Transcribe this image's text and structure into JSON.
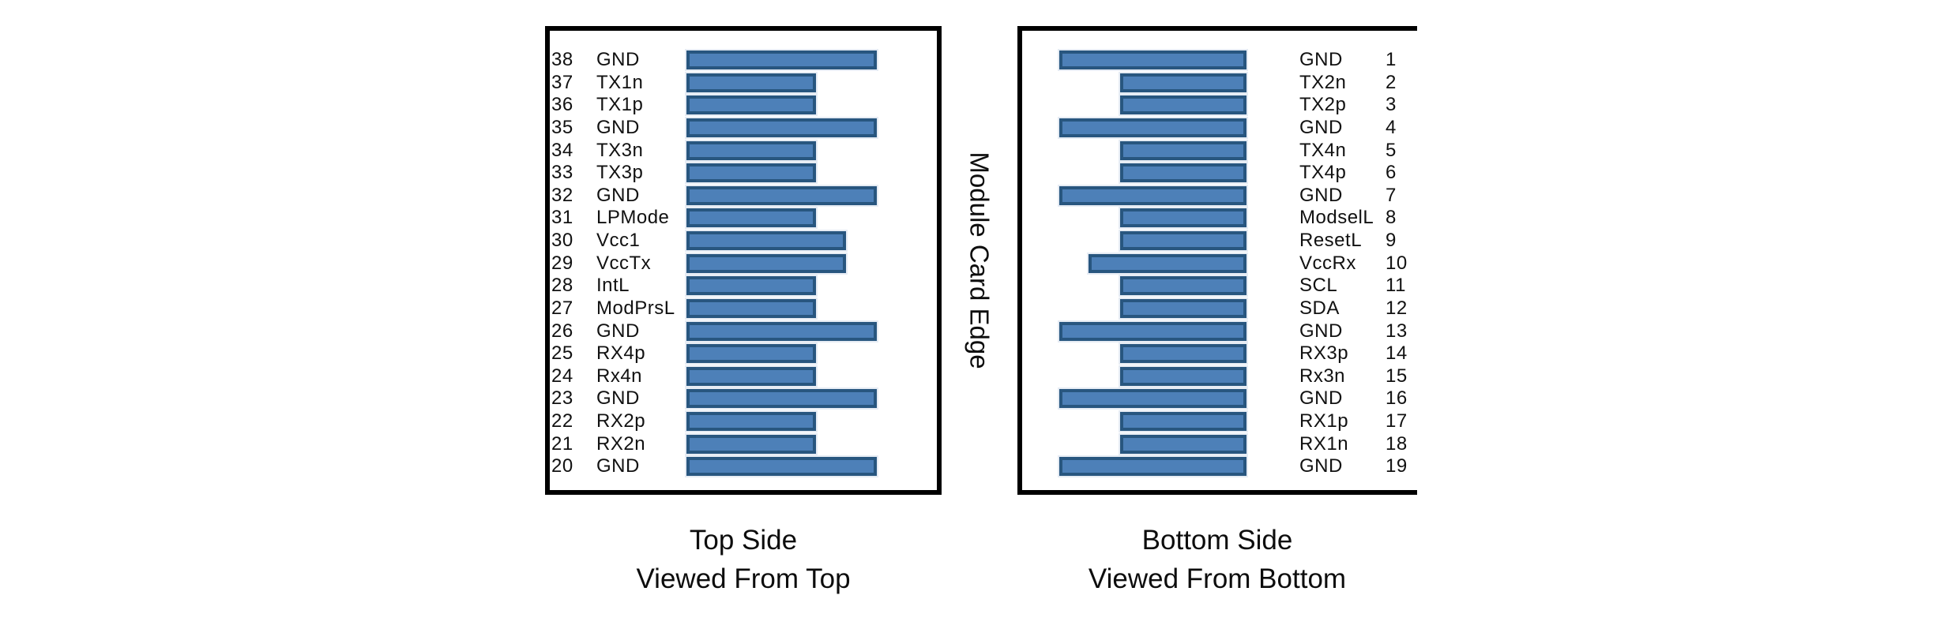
{
  "figure": {
    "edge_label": "Module Card Edge",
    "colors": {
      "bar_fill": "#4d80b8",
      "bar_border": "#28567f",
      "panel_border": "#000000"
    },
    "left_panel": {
      "caption_line1": "Top Side",
      "caption_line2": "Viewed From Top",
      "pins": [
        {
          "num": "38",
          "label": "GND",
          "type": "gnd"
        },
        {
          "num": "37",
          "label": "TX1n",
          "type": "signal"
        },
        {
          "num": "36",
          "label": "TX1p",
          "type": "signal"
        },
        {
          "num": "35",
          "label": "GND",
          "type": "gnd"
        },
        {
          "num": "34",
          "label": "TX3n",
          "type": "signal"
        },
        {
          "num": "33",
          "label": "TX3p",
          "type": "signal"
        },
        {
          "num": "32",
          "label": "GND",
          "type": "gnd"
        },
        {
          "num": "31",
          "label": "LPMode",
          "type": "signal"
        },
        {
          "num": "30",
          "label": "Vcc1",
          "type": "power"
        },
        {
          "num": "29",
          "label": "VccTx",
          "type": "power"
        },
        {
          "num": "28",
          "label": "IntL",
          "type": "signal"
        },
        {
          "num": "27",
          "label": "ModPrsL",
          "type": "signal"
        },
        {
          "num": "26",
          "label": "GND",
          "type": "gnd"
        },
        {
          "num": "25",
          "label": "RX4p",
          "type": "signal"
        },
        {
          "num": "24",
          "label": "Rx4n",
          "type": "signal"
        },
        {
          "num": "23",
          "label": "GND",
          "type": "gnd"
        },
        {
          "num": "22",
          "label": "RX2p",
          "type": "signal"
        },
        {
          "num": "21",
          "label": "RX2n",
          "type": "signal"
        },
        {
          "num": "20",
          "label": "GND",
          "type": "gnd"
        }
      ]
    },
    "right_panel": {
      "caption_line1": "Bottom Side",
      "caption_line2": "Viewed From Bottom",
      "pins": [
        {
          "num": "1",
          "label": "GND",
          "type": "gnd"
        },
        {
          "num": "2",
          "label": "TX2n",
          "type": "signal"
        },
        {
          "num": "3",
          "label": "TX2p",
          "type": "signal"
        },
        {
          "num": "4",
          "label": "GND",
          "type": "gnd"
        },
        {
          "num": "5",
          "label": "TX4n",
          "type": "signal"
        },
        {
          "num": "6",
          "label": "TX4p",
          "type": "signal"
        },
        {
          "num": "7",
          "label": "GND",
          "type": "gnd"
        },
        {
          "num": "8",
          "label": "ModselL",
          "type": "signal"
        },
        {
          "num": "9",
          "label": "ResetL",
          "type": "signal"
        },
        {
          "num": "10",
          "label": "VccRx",
          "type": "power"
        },
        {
          "num": "11",
          "label": "SCL",
          "type": "signal"
        },
        {
          "num": "12",
          "label": "SDA",
          "type": "signal"
        },
        {
          "num": "13",
          "label": "GND",
          "type": "gnd"
        },
        {
          "num": "14",
          "label": "RX3p",
          "type": "signal"
        },
        {
          "num": "15",
          "label": "Rx3n",
          "type": "signal"
        },
        {
          "num": "16",
          "label": "GND",
          "type": "gnd"
        },
        {
          "num": "17",
          "label": "RX1p",
          "type": "signal"
        },
        {
          "num": "18",
          "label": "RX1n",
          "type": "signal"
        },
        {
          "num": "19",
          "label": "GND",
          "type": "gnd"
        }
      ]
    }
  }
}
